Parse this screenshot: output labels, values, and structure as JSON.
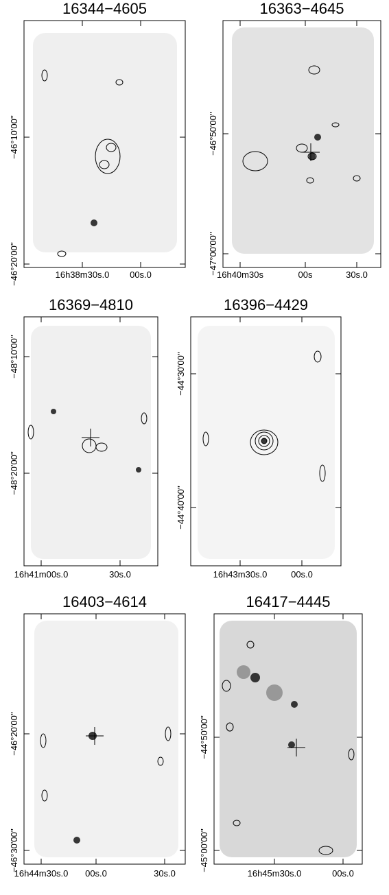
{
  "panels": [
    {
      "title": "16344−4605",
      "dec_labels": [
        "−46°10'00''",
        "−46°20'00''"
      ],
      "ra_labels": [
        "16h38m30s.0",
        "00s.0"
      ]
    },
    {
      "title": "16363−4645",
      "dec_labels": [
        "−46°50'00''",
        "−47°00'00''"
      ],
      "ra_labels": [
        "16h40m30s",
        "00s",
        "30s.0"
      ]
    },
    {
      "title": "16369−4810",
      "dec_labels": [
        "−48°10'00''",
        "−48°20'00''"
      ],
      "ra_labels": [
        "16h41m00s.0",
        "30s.0"
      ]
    },
    {
      "title": "16396−4429",
      "dec_labels": [
        "−44°30'00''",
        "−44°40'00''"
      ],
      "ra_labels": [
        "16h43m30s.0",
        "00s.0"
      ]
    },
    {
      "title": "16403−4614",
      "dec_labels": [
        "−46°20'00''",
        "−46°30'00''"
      ],
      "ra_labels": [
        "16h44m30s.0",
        "00s.0",
        "30s.0"
      ]
    },
    {
      "title": "16417−4445",
      "dec_labels": [
        "−44°50'00''",
        "−45°00'00''"
      ],
      "ra_labels": [
        "16h45m30s.0",
        "00s.0"
      ]
    }
  ]
}
